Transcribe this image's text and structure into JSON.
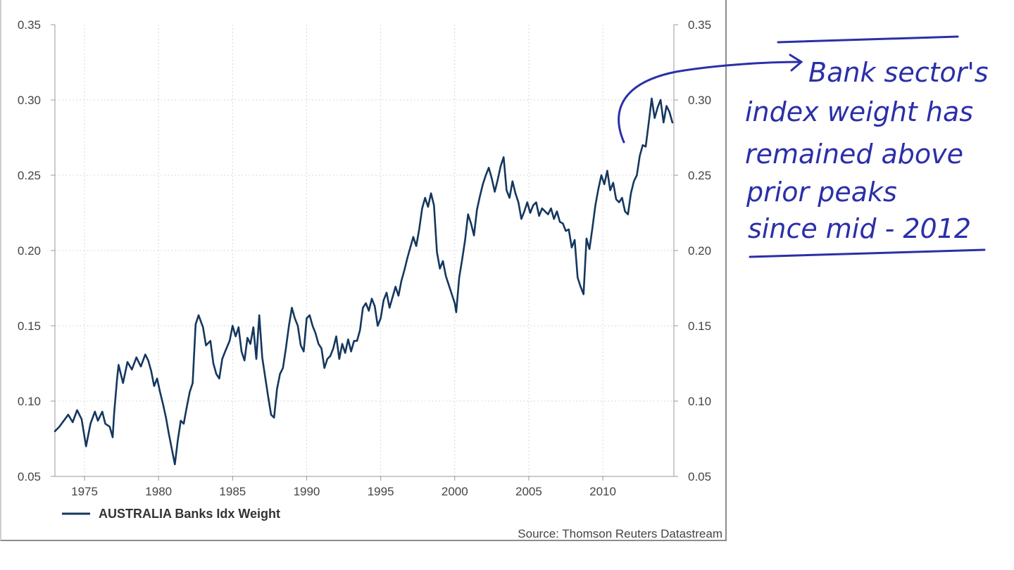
{
  "chart_data": {
    "type": "line",
    "series": [
      {
        "name": "AUSTRALIA Banks Idx Weight",
        "color": "#14375e",
        "points": [
          [
            1973.0,
            0.08
          ],
          [
            1973.3,
            0.083
          ],
          [
            1973.6,
            0.087
          ],
          [
            1973.9,
            0.091
          ],
          [
            1974.2,
            0.086
          ],
          [
            1974.5,
            0.094
          ],
          [
            1974.8,
            0.088
          ],
          [
            1975.0,
            0.076
          ],
          [
            1975.1,
            0.07
          ],
          [
            1975.4,
            0.085
          ],
          [
            1975.7,
            0.093
          ],
          [
            1975.9,
            0.087
          ],
          [
            1976.2,
            0.093
          ],
          [
            1976.4,
            0.085
          ],
          [
            1976.7,
            0.083
          ],
          [
            1976.9,
            0.076
          ],
          [
            1977.0,
            0.092
          ],
          [
            1977.2,
            0.115
          ],
          [
            1977.3,
            0.124
          ],
          [
            1977.6,
            0.112
          ],
          [
            1977.9,
            0.126
          ],
          [
            1978.2,
            0.121
          ],
          [
            1978.5,
            0.129
          ],
          [
            1978.8,
            0.123
          ],
          [
            1979.1,
            0.131
          ],
          [
            1979.3,
            0.127
          ],
          [
            1979.5,
            0.12
          ],
          [
            1979.7,
            0.11
          ],
          [
            1979.9,
            0.115
          ],
          [
            1980.1,
            0.106
          ],
          [
            1980.3,
            0.098
          ],
          [
            1980.5,
            0.089
          ],
          [
            1980.7,
            0.078
          ],
          [
            1980.9,
            0.068
          ],
          [
            1981.1,
            0.058
          ],
          [
            1981.3,
            0.074
          ],
          [
            1981.5,
            0.087
          ],
          [
            1981.7,
            0.085
          ],
          [
            1981.9,
            0.096
          ],
          [
            1982.1,
            0.106
          ],
          [
            1982.3,
            0.112
          ],
          [
            1982.5,
            0.151
          ],
          [
            1982.7,
            0.157
          ],
          [
            1983.0,
            0.149
          ],
          [
            1983.2,
            0.137
          ],
          [
            1983.5,
            0.14
          ],
          [
            1983.7,
            0.125
          ],
          [
            1983.9,
            0.118
          ],
          [
            1984.1,
            0.115
          ],
          [
            1984.3,
            0.128
          ],
          [
            1984.5,
            0.133
          ],
          [
            1984.8,
            0.14
          ],
          [
            1985.0,
            0.15
          ],
          [
            1985.2,
            0.143
          ],
          [
            1985.4,
            0.149
          ],
          [
            1985.6,
            0.133
          ],
          [
            1985.8,
            0.127
          ],
          [
            1986.0,
            0.142
          ],
          [
            1986.2,
            0.138
          ],
          [
            1986.4,
            0.149
          ],
          [
            1986.6,
            0.128
          ],
          [
            1986.8,
            0.157
          ],
          [
            1987.0,
            0.129
          ],
          [
            1987.2,
            0.116
          ],
          [
            1987.4,
            0.103
          ],
          [
            1987.6,
            0.091
          ],
          [
            1987.8,
            0.089
          ],
          [
            1988.0,
            0.108
          ],
          [
            1988.2,
            0.118
          ],
          [
            1988.4,
            0.122
          ],
          [
            1988.6,
            0.135
          ],
          [
            1988.8,
            0.15
          ],
          [
            1989.0,
            0.162
          ],
          [
            1989.2,
            0.155
          ],
          [
            1989.4,
            0.15
          ],
          [
            1989.6,
            0.137
          ],
          [
            1989.8,
            0.133
          ],
          [
            1990.0,
            0.155
          ],
          [
            1990.2,
            0.157
          ],
          [
            1990.4,
            0.15
          ],
          [
            1990.6,
            0.145
          ],
          [
            1990.8,
            0.138
          ],
          [
            1991.0,
            0.135
          ],
          [
            1991.2,
            0.122
          ],
          [
            1991.4,
            0.128
          ],
          [
            1991.6,
            0.13
          ],
          [
            1991.8,
            0.135
          ],
          [
            1992.0,
            0.143
          ],
          [
            1992.2,
            0.128
          ],
          [
            1992.4,
            0.138
          ],
          [
            1992.6,
            0.132
          ],
          [
            1992.8,
            0.141
          ],
          [
            1993.0,
            0.133
          ],
          [
            1993.2,
            0.14
          ],
          [
            1993.4,
            0.14
          ],
          [
            1993.6,
            0.147
          ],
          [
            1993.8,
            0.162
          ],
          [
            1994.0,
            0.165
          ],
          [
            1994.2,
            0.16
          ],
          [
            1994.4,
            0.168
          ],
          [
            1994.6,
            0.163
          ],
          [
            1994.8,
            0.15
          ],
          [
            1995.0,
            0.155
          ],
          [
            1995.2,
            0.167
          ],
          [
            1995.4,
            0.172
          ],
          [
            1995.6,
            0.162
          ],
          [
            1995.8,
            0.169
          ],
          [
            1996.0,
            0.176
          ],
          [
            1996.2,
            0.17
          ],
          [
            1996.4,
            0.18
          ],
          [
            1996.6,
            0.187
          ],
          [
            1996.8,
            0.195
          ],
          [
            1997.0,
            0.202
          ],
          [
            1997.2,
            0.209
          ],
          [
            1997.4,
            0.203
          ],
          [
            1997.6,
            0.214
          ],
          [
            1997.8,
            0.228
          ],
          [
            1998.0,
            0.235
          ],
          [
            1998.2,
            0.229
          ],
          [
            1998.4,
            0.238
          ],
          [
            1998.6,
            0.23
          ],
          [
            1998.8,
            0.199
          ],
          [
            1999.0,
            0.188
          ],
          [
            1999.2,
            0.193
          ],
          [
            1999.4,
            0.183
          ],
          [
            1999.6,
            0.177
          ],
          [
            1999.8,
            0.171
          ],
          [
            2000.0,
            0.165
          ],
          [
            2000.1,
            0.159
          ],
          [
            2000.3,
            0.182
          ],
          [
            2000.5,
            0.194
          ],
          [
            2000.7,
            0.207
          ],
          [
            2000.9,
            0.224
          ],
          [
            2001.1,
            0.218
          ],
          [
            2001.3,
            0.21
          ],
          [
            2001.5,
            0.227
          ],
          [
            2001.7,
            0.236
          ],
          [
            2001.9,
            0.244
          ],
          [
            2002.1,
            0.25
          ],
          [
            2002.3,
            0.255
          ],
          [
            2002.5,
            0.248
          ],
          [
            2002.7,
            0.239
          ],
          [
            2002.9,
            0.247
          ],
          [
            2003.1,
            0.256
          ],
          [
            2003.3,
            0.262
          ],
          [
            2003.5,
            0.24
          ],
          [
            2003.7,
            0.235
          ],
          [
            2003.9,
            0.246
          ],
          [
            2004.1,
            0.238
          ],
          [
            2004.3,
            0.232
          ],
          [
            2004.5,
            0.221
          ],
          [
            2004.7,
            0.226
          ],
          [
            2004.9,
            0.232
          ],
          [
            2005.1,
            0.225
          ],
          [
            2005.3,
            0.23
          ],
          [
            2005.5,
            0.232
          ],
          [
            2005.7,
            0.223
          ],
          [
            2005.9,
            0.228
          ],
          [
            2006.1,
            0.226
          ],
          [
            2006.3,
            0.224
          ],
          [
            2006.5,
            0.228
          ],
          [
            2006.7,
            0.221
          ],
          [
            2006.9,
            0.226
          ],
          [
            2007.1,
            0.219
          ],
          [
            2007.3,
            0.218
          ],
          [
            2007.5,
            0.213
          ],
          [
            2007.7,
            0.214
          ],
          [
            2007.9,
            0.202
          ],
          [
            2008.1,
            0.207
          ],
          [
            2008.3,
            0.182
          ],
          [
            2008.5,
            0.176
          ],
          [
            2008.7,
            0.171
          ],
          [
            2008.9,
            0.208
          ],
          [
            2009.1,
            0.201
          ],
          [
            2009.3,
            0.215
          ],
          [
            2009.5,
            0.23
          ],
          [
            2009.7,
            0.241
          ],
          [
            2009.9,
            0.25
          ],
          [
            2010.1,
            0.244
          ],
          [
            2010.3,
            0.253
          ],
          [
            2010.5,
            0.24
          ],
          [
            2010.7,
            0.245
          ],
          [
            2010.9,
            0.234
          ],
          [
            2011.1,
            0.232
          ],
          [
            2011.3,
            0.235
          ],
          [
            2011.5,
            0.226
          ],
          [
            2011.7,
            0.224
          ],
          [
            2011.9,
            0.238
          ],
          [
            2012.1,
            0.246
          ],
          [
            2012.3,
            0.25
          ],
          [
            2012.5,
            0.263
          ],
          [
            2012.7,
            0.27
          ],
          [
            2012.9,
            0.269
          ],
          [
            2013.1,
            0.285
          ],
          [
            2013.3,
            0.301
          ],
          [
            2013.5,
            0.288
          ],
          [
            2013.7,
            0.295
          ],
          [
            2013.9,
            0.3
          ],
          [
            2014.1,
            0.285
          ],
          [
            2014.3,
            0.296
          ],
          [
            2014.5,
            0.292
          ],
          [
            2014.7,
            0.285
          ]
        ]
      }
    ],
    "x_ticks": [
      "1975",
      "1980",
      "1985",
      "1990",
      "1995",
      "2000",
      "2005",
      "2010"
    ],
    "y_ticks": [
      "0.35",
      "0.30",
      "0.25",
      "0.20",
      "0.15",
      "0.10",
      "0.05"
    ],
    "xlim": [
      1973.0,
      2014.8
    ],
    "ylim": [
      0.05,
      0.35
    ],
    "grid": true,
    "legend_position": "bottom-left",
    "source": "Source: Thomson Reuters Datastream",
    "annotation": {
      "lines": [
        "Bank sector's",
        "index weight has",
        "remained above",
        "prior peaks",
        "since mid - 2012"
      ],
      "color": "#2b2fa8"
    }
  }
}
